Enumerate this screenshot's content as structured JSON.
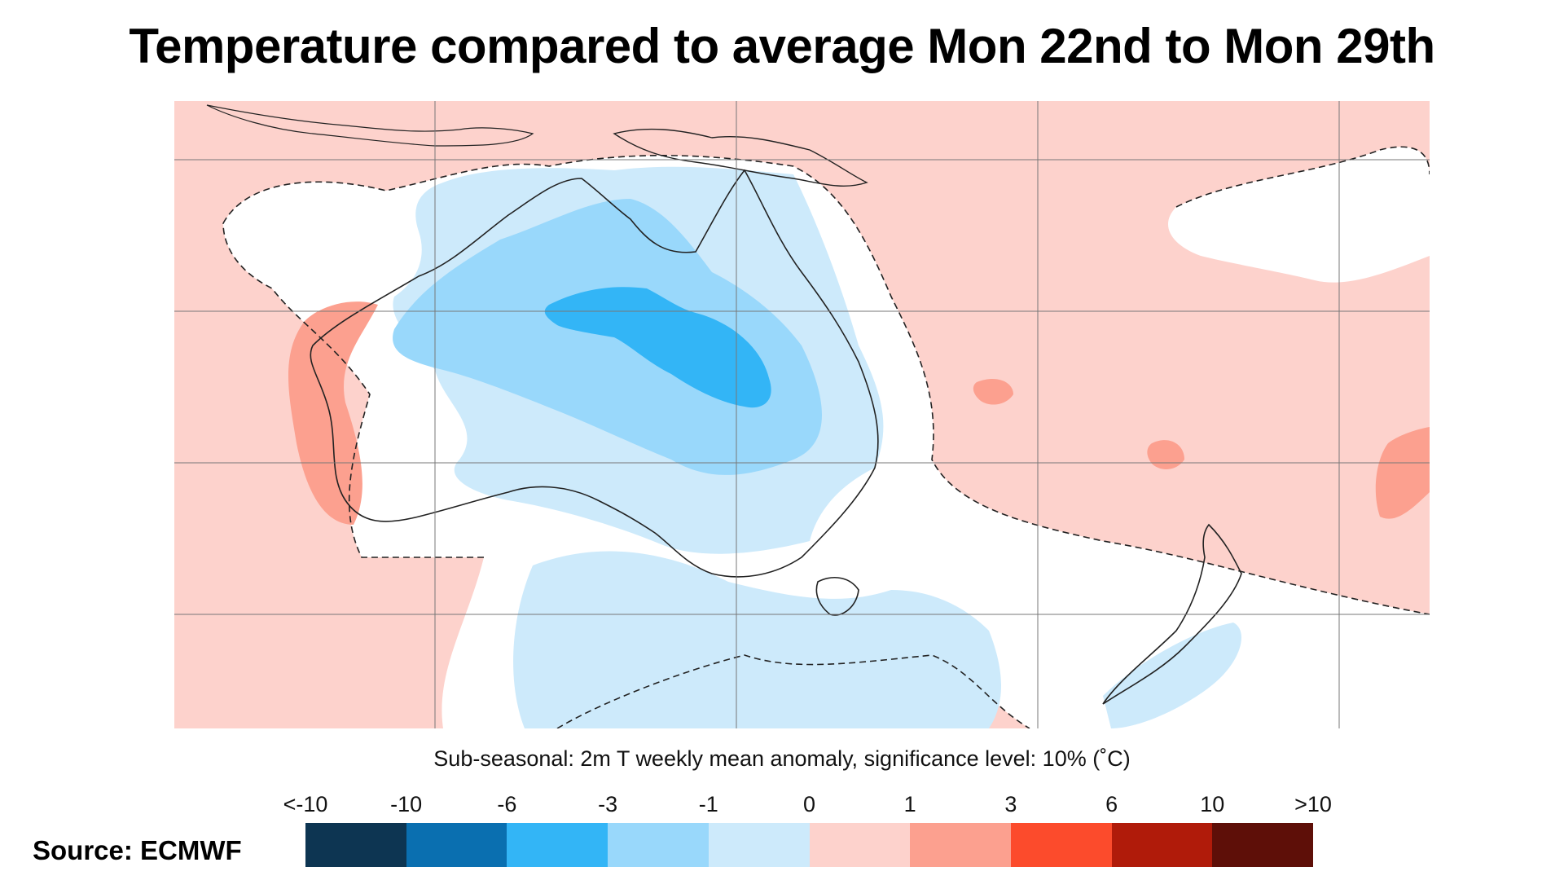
{
  "title": "Temperature compared to average Mon 22nd to Mon 29th",
  "subtitle": "Sub-seasonal: 2m T weekly mean anomaly, significance level: 10% (˚C)",
  "source": "Source: ECMWF",
  "legend": {
    "tick_labels": [
      "<-10",
      "-10",
      "-6",
      "-3",
      "-1",
      "0",
      "1",
      "3",
      "6",
      "10",
      ">10"
    ],
    "bins": [
      {
        "range": "<-10",
        "color": "#0d3552"
      },
      {
        "range": "-10 to -6",
        "color": "#0a6fb0"
      },
      {
        "range": "-6 to -3",
        "color": "#33b5f6"
      },
      {
        "range": "-3 to -1",
        "color": "#99d8fb"
      },
      {
        "range": "-1 to 0",
        "color": "#cdeafb"
      },
      {
        "range": "0 to 1",
        "color": "#fdd2cc"
      },
      {
        "range": "1 to 3",
        "color": "#fca08f"
      },
      {
        "range": "3 to 6",
        "color": "#fc4b2c"
      },
      {
        "range": "6 to 10",
        "color": "#b01b0a"
      },
      {
        "range": ">10",
        "color": "#5e0f08"
      }
    ]
  },
  "map": {
    "region": "Australia and surrounding oceans",
    "colors": {
      "background_anomaly": "#fdd2cc",
      "not_significant": "#ffffff",
      "light_blue": "#cdeafb",
      "mid_blue": "#99d8fb",
      "strong_blue": "#33b5f6",
      "warm": "#fca08f",
      "coastline": "#222222",
      "grid": "#777777"
    }
  }
}
